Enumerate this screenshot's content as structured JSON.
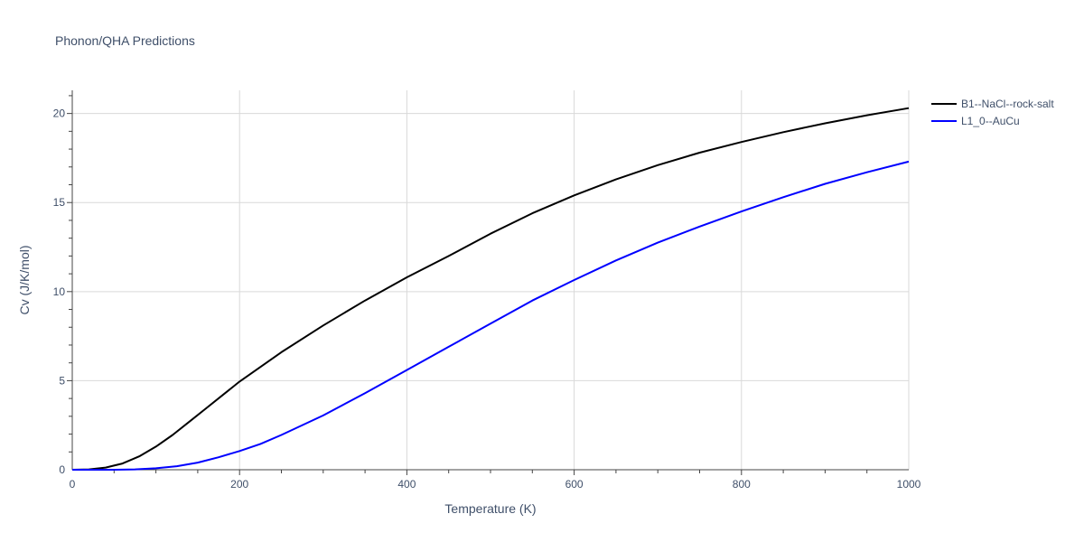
{
  "chart_data": {
    "type": "line",
    "title": "Phonon/QHA Predictions",
    "xlabel": "Temperature (K)",
    "ylabel": "Cv (J/K/mol)",
    "xlim": [
      0,
      1000
    ],
    "ylim": [
      0,
      21.3
    ],
    "grid": true,
    "legend_position": "top-right",
    "x_ticks": [
      "0",
      "200",
      "400",
      "600",
      "800",
      "1000"
    ],
    "y_ticks": [
      "0",
      "5",
      "10",
      "15",
      "20"
    ],
    "series": [
      {
        "name": "B1--NaCl--rock-salt",
        "color": "#000000",
        "x": [
          0,
          20,
          40,
          60,
          80,
          100,
          120,
          140,
          160,
          180,
          200,
          250,
          300,
          350,
          400,
          450,
          500,
          550,
          600,
          650,
          700,
          750,
          800,
          850,
          900,
          950,
          1000
        ],
        "y": [
          0,
          0.02,
          0.12,
          0.35,
          0.75,
          1.3,
          1.95,
          2.7,
          3.45,
          4.2,
          4.95,
          6.6,
          8.1,
          9.5,
          10.8,
          12.0,
          13.25,
          14.4,
          15.4,
          16.3,
          17.1,
          17.8,
          18.4,
          18.95,
          19.45,
          19.9,
          20.3
        ]
      },
      {
        "name": "L1_0--AuCu",
        "color": "#0000ff",
        "x": [
          0,
          50,
          75,
          100,
          125,
          150,
          175,
          200,
          225,
          250,
          300,
          350,
          400,
          450,
          500,
          550,
          600,
          650,
          700,
          750,
          800,
          850,
          900,
          950,
          1000
        ],
        "y": [
          0,
          0.0,
          0.02,
          0.08,
          0.2,
          0.4,
          0.7,
          1.05,
          1.45,
          1.95,
          3.05,
          4.3,
          5.6,
          6.9,
          8.2,
          9.5,
          10.65,
          11.75,
          12.75,
          13.65,
          14.5,
          15.3,
          16.05,
          16.7,
          17.3
        ]
      }
    ]
  }
}
